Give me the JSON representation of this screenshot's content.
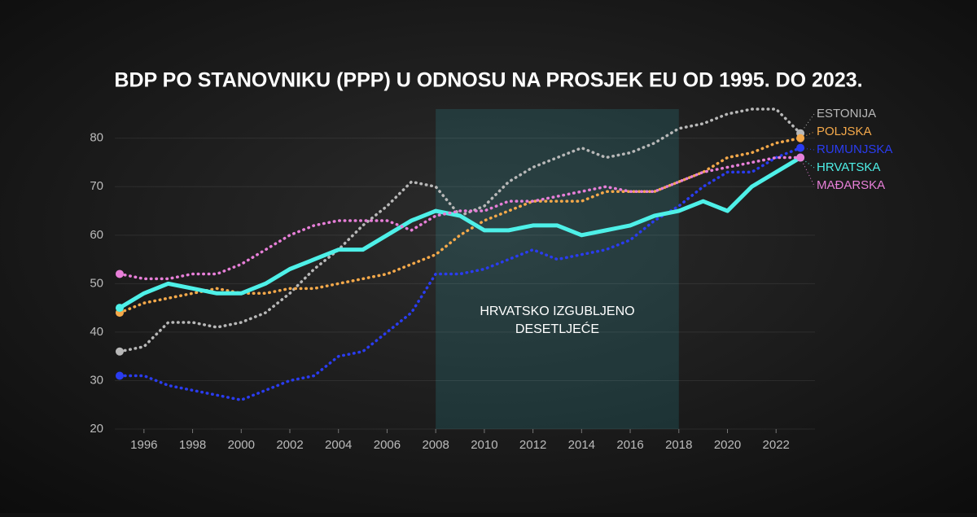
{
  "chart_data": {
    "type": "line",
    "title": "BDP PO STANOVNIKU (PPP) U ODNOSU NA PROSJEK EU OD 1995. DO 2023.",
    "x": [
      1995,
      1996,
      1997,
      1998,
      1999,
      2000,
      2001,
      2002,
      2003,
      2004,
      2005,
      2006,
      2007,
      2008,
      2009,
      2010,
      2011,
      2012,
      2013,
      2014,
      2015,
      2016,
      2017,
      2018,
      2019,
      2020,
      2021,
      2022,
      2023
    ],
    "xlim": [
      1994.8,
      2023.6
    ],
    "xticks": [
      1996,
      1998,
      2000,
      2002,
      2004,
      2006,
      2008,
      2010,
      2012,
      2014,
      2016,
      2018,
      2020,
      2022
    ],
    "ylim": [
      20,
      86
    ],
    "yticks": [
      20,
      30,
      40,
      50,
      60,
      70,
      80
    ],
    "grid": true,
    "annotation": {
      "lines": [
        "HRVATSKO IZGUBLJENO",
        "DESETLJEĆE"
      ],
      "x_from": 2008,
      "x_to": 2018
    },
    "series": [
      {
        "name": "ESTONIJA",
        "color": "#b8b8b8",
        "line_style": "dotted",
        "values": [
          36,
          37,
          42,
          42,
          41,
          42,
          44,
          48,
          53,
          57,
          62,
          66,
          71,
          70,
          64,
          66,
          71,
          74,
          76,
          78,
          76,
          77,
          79,
          82,
          83,
          85,
          86,
          86,
          81
        ]
      },
      {
        "name": "POLJSKA",
        "color": "#f5a94a",
        "line_style": "dotted",
        "values": [
          44,
          46,
          47,
          48,
          49,
          48,
          48,
          49,
          49,
          50,
          51,
          52,
          54,
          56,
          60,
          63,
          65,
          67,
          67,
          67,
          69,
          69,
          69,
          71,
          73,
          76,
          77,
          79,
          80
        ]
      },
      {
        "name": "RUMUNJSKA",
        "color": "#2a3cf0",
        "line_style": "dotted",
        "values": [
          31,
          31,
          29,
          28,
          27,
          26,
          28,
          30,
          31,
          35,
          36,
          40,
          44,
          52,
          52,
          53,
          55,
          57,
          55,
          56,
          57,
          59,
          63,
          66,
          70,
          73,
          73,
          76,
          78
        ]
      },
      {
        "name": "HRVATSKA",
        "color": "#4ef0e8",
        "line_style": "solid",
        "values": [
          45,
          48,
          50,
          49,
          48,
          48,
          50,
          53,
          55,
          57,
          57,
          60,
          63,
          65,
          64,
          61,
          61,
          62,
          62,
          60,
          61,
          62,
          64,
          65,
          67,
          65,
          70,
          73,
          76
        ]
      },
      {
        "name": "MAĐARSKA",
        "color": "#e77fd8",
        "line_style": "dotted",
        "values": [
          52,
          51,
          51,
          52,
          52,
          54,
          57,
          60,
          62,
          63,
          63,
          63,
          61,
          64,
          65,
          65,
          67,
          67,
          68,
          69,
          70,
          69,
          69,
          71,
          73,
          74,
          75,
          76,
          76
        ]
      }
    ]
  }
}
